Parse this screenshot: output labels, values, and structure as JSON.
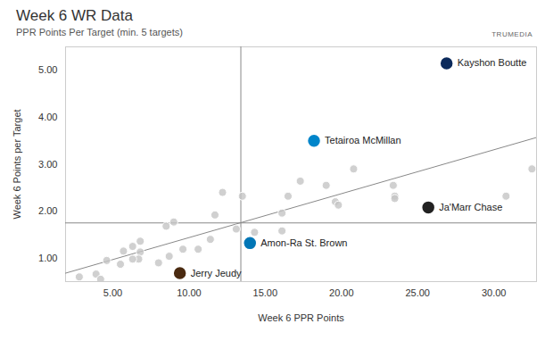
{
  "chart_data": {
    "type": "scatter",
    "title": "Week 6 WR Data",
    "subtitle": "PPR Points Per Target (min. 5 targets)",
    "source": "TRUMEDIA",
    "x_label": "Week 6 PPR Points",
    "y_label": "Week 6 Points per Target",
    "x": [
      26.9,
      18.2,
      25.7,
      14.0,
      9.4,
      2.8,
      3.9,
      4.2,
      4.6,
      5.5,
      5.7,
      6.3,
      6.8,
      6.8,
      6.7,
      6.3,
      8.0,
      8.5,
      9.0,
      8.7,
      9.6,
      10.6,
      11.4,
      11.7,
      12.2,
      13.1,
      13.5,
      14.3,
      16.1,
      16.1,
      16.5,
      17.3,
      19.0,
      19.6,
      19.8,
      20.8,
      23.4,
      23.5,
      23.5,
      30.8,
      32.5
    ],
    "values": [
      5.15,
      3.5,
      2.08,
      1.32,
      0.68,
      0.6,
      0.66,
      0.55,
      0.95,
      0.87,
      1.15,
      1.25,
      1.36,
      1.13,
      0.98,
      0.98,
      0.9,
      1.68,
      1.77,
      1.04,
      1.19,
      1.19,
      1.4,
      1.92,
      2.4,
      1.62,
      2.32,
      1.55,
      1.58,
      1.96,
      2.32,
      2.64,
      2.55,
      2.2,
      2.13,
      2.9,
      2.55,
      2.32,
      2.27,
      2.32,
      2.9
    ],
    "labels": [
      "Kayshon Boutte",
      "Tetairoa McMillan",
      "Ja'Marr Chase",
      "Amon-Ra St. Brown",
      "Jerry Jeudy",
      null,
      null,
      null,
      null,
      null,
      null,
      null,
      null,
      null,
      null,
      null,
      null,
      null,
      null,
      null,
      null,
      null,
      null,
      null,
      null,
      null,
      null,
      null,
      null,
      null,
      null,
      null,
      null,
      null,
      null,
      null,
      null,
      null,
      null,
      null,
      null
    ],
    "colors": [
      "#0b2a5b",
      "#0085ca",
      "#222222",
      "#0076b6",
      "#4a2a10",
      "#c4c4c4",
      "#c4c4c4",
      "#c4c4c4",
      "#c4c4c4",
      "#c4c4c4",
      "#c4c4c4",
      "#c4c4c4",
      "#c4c4c4",
      "#c4c4c4",
      "#c4c4c4",
      "#c4c4c4",
      "#c4c4c4",
      "#c4c4c4",
      "#c4c4c4",
      "#c4c4c4",
      "#c4c4c4",
      "#c4c4c4",
      "#c4c4c4",
      "#c4c4c4",
      "#c4c4c4",
      "#c4c4c4",
      "#c4c4c4",
      "#c4c4c4",
      "#c4c4c4",
      "#c4c4c4",
      "#c4c4c4",
      "#c4c4c4",
      "#c4c4c4",
      "#c4c4c4",
      "#c4c4c4",
      "#c4c4c4",
      "#c4c4c4",
      "#c4c4c4",
      "#c4c4c4",
      "#c4c4c4",
      "#c4c4c4"
    ],
    "trend_line": {
      "x": [
        1.9,
        32.8
      ],
      "values": [
        0.68,
        3.57
      ]
    },
    "reference_lines": {
      "x": 13.4,
      "y": 1.75
    },
    "xlim": [
      1.9,
      32.8
    ],
    "ylim": [
      0.5,
      5.5
    ],
    "xticks": [
      {
        "value": 5,
        "label": "5.00"
      },
      {
        "value": 10,
        "label": "10.00"
      },
      {
        "value": 15,
        "label": "15.00"
      },
      {
        "value": 20,
        "label": "20.00"
      },
      {
        "value": 25,
        "label": "25.00"
      },
      {
        "value": 30,
        "label": "30.00"
      }
    ],
    "yticks": [
      {
        "value": 1,
        "label": "1.00"
      },
      {
        "value": 2,
        "label": "2.00"
      },
      {
        "value": 3,
        "label": "3.00"
      },
      {
        "value": 4,
        "label": "4.00"
      },
      {
        "value": 5,
        "label": "5.00"
      }
    ],
    "grid": false
  }
}
